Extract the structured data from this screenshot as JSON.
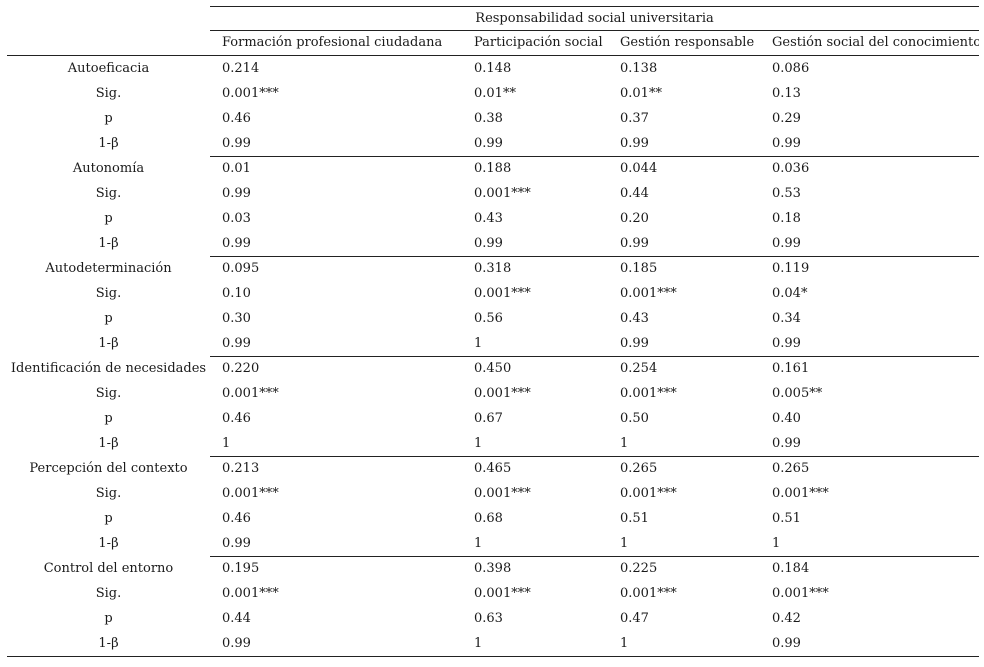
{
  "header": {
    "group_title": "Responsabilidad social universitaria",
    "columns": [
      "Formación profesional ciudadana",
      "Participación social",
      "Gestión responsable",
      "Gestión social del conocimiento"
    ]
  },
  "stat_labels": [
    "Sig.",
    "p",
    "1-β"
  ],
  "blocks": [
    {
      "name": "Autoeficacia",
      "values": [
        "0.214",
        "0.148",
        "0.138",
        "0.086"
      ],
      "sig": [
        "0.001***",
        "0.01**",
        "0.01**",
        "0.13"
      ],
      "p": [
        "0.46",
        "0.38",
        "0.37",
        "0.29"
      ],
      "power": [
        "0.99",
        "0.99",
        "0.99",
        "0.99"
      ]
    },
    {
      "name": "Autonomía",
      "values": [
        "0.01",
        "0.188",
        "0.044",
        "0.036"
      ],
      "sig": [
        "0.99",
        "0.001***",
        "0.44",
        "0.53"
      ],
      "p": [
        "0.03",
        "0.43",
        "0.20",
        "0.18"
      ],
      "power": [
        "0.99",
        "0.99",
        "0.99",
        "0.99"
      ]
    },
    {
      "name": "Autodeterminación",
      "values": [
        "0.095",
        "0.318",
        "0.185",
        "0.119"
      ],
      "sig": [
        "0.10",
        "0.001***",
        "0.001***",
        "0.04*"
      ],
      "p": [
        "0.30",
        "0.56",
        "0.43",
        "0.34"
      ],
      "power": [
        "0.99",
        "1",
        "0.99",
        "0.99"
      ]
    },
    {
      "name": "Identificación de necesidades",
      "values": [
        "0.220",
        "0.450",
        "0.254",
        "0.161"
      ],
      "sig": [
        "0.001***",
        "0.001***",
        "0.001***",
        "0.005**"
      ],
      "p": [
        "0.46",
        "0.67",
        "0.50",
        "0.40"
      ],
      "power": [
        "1",
        "1",
        "1",
        "0.99"
      ]
    },
    {
      "name": "Percepción del contexto",
      "values": [
        "0.213",
        "0.465",
        "0.265",
        "0.265"
      ],
      "sig": [
        "0.001***",
        "0.001***",
        "0.001***",
        "0.001***"
      ],
      "p": [
        "0.46",
        "0.68",
        "0.51",
        "0.51"
      ],
      "power": [
        "0.99",
        "1",
        "1",
        "1"
      ]
    },
    {
      "name": "Control del entorno",
      "values": [
        "0.195",
        "0.398",
        "0.225",
        "0.184"
      ],
      "sig": [
        "0.001***",
        "0.001***",
        "0.001***",
        "0.001***"
      ],
      "p": [
        "0.44",
        "0.63",
        "0.47",
        "0.42"
      ],
      "power": [
        "0.99",
        "1",
        "1",
        "0.99"
      ]
    }
  ]
}
